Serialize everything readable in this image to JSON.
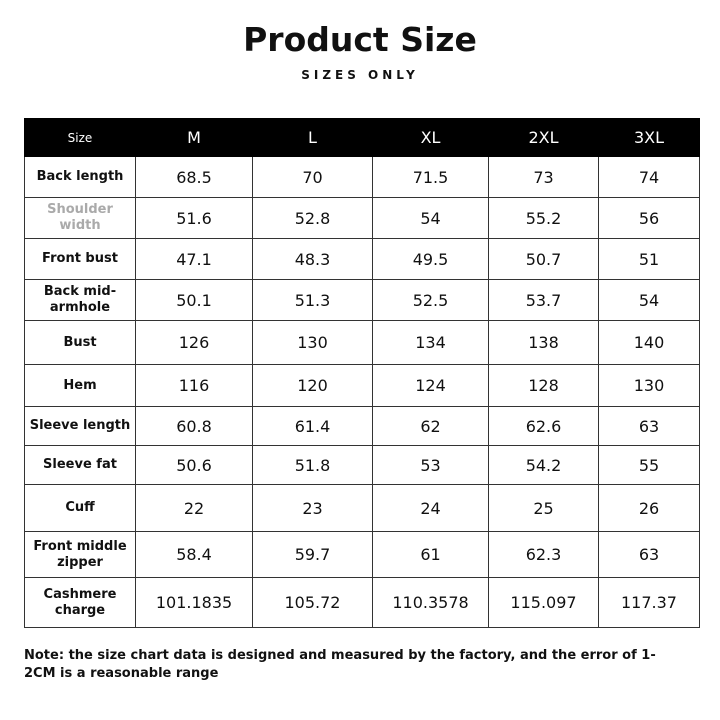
{
  "header": {
    "title": "Product Size",
    "subtitle": "SIZES ONLY"
  },
  "table": {
    "columns": [
      "Size",
      "M",
      "L",
      "XL",
      "2XL",
      "3XL"
    ],
    "rows": [
      [
        "Back length",
        "68.5",
        "70",
        "71.5",
        "73",
        "74"
      ],
      [
        "Shoulder width",
        "51.6",
        "52.8",
        "54",
        "55.2",
        "56"
      ],
      [
        "Front bust",
        "47.1",
        "48.3",
        "49.5",
        "50.7",
        "51"
      ],
      [
        "Back mid-armhole",
        "50.1",
        "51.3",
        "52.5",
        "53.7",
        "54"
      ],
      [
        "Bust",
        "126",
        "130",
        "134",
        "138",
        "140"
      ],
      [
        "Hem",
        "116",
        "120",
        "124",
        "128",
        "130"
      ],
      [
        "Sleeve length",
        "60.8",
        "61.4",
        "62",
        "62.6",
        "63"
      ],
      [
        "Sleeve fat",
        "50.6",
        "51.8",
        "53",
        "54.2",
        "55"
      ],
      [
        "Cuff",
        "22",
        "23",
        "24",
        "25",
        "26"
      ],
      [
        "Front middle zipper",
        "58.4",
        "59.7",
        "61",
        "62.3",
        "63"
      ],
      [
        "Cashmere charge",
        "101.1835",
        "105.72",
        "110.3578",
        "115.097",
        "117.37"
      ]
    ]
  },
  "note": "Note: the size chart data is designed and measured by the factory, and the error of 1-2CM is a reasonable range"
}
